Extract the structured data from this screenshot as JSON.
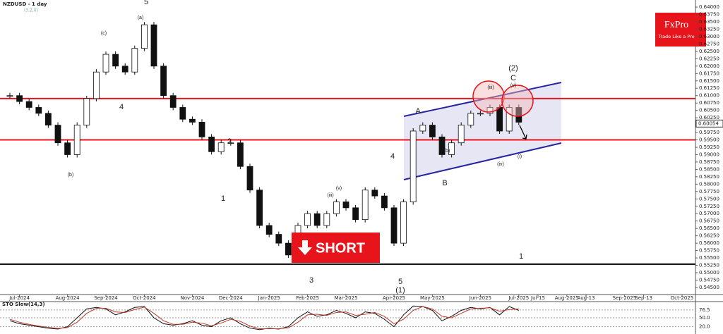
{
  "chart_data": {
    "type": "candlestick",
    "title": "NZDUSD - 1 day",
    "subtitle": "(3,2,0)",
    "brand": {
      "name": "FxPro",
      "tagline": "Trade Like a Pro"
    },
    "signal": "SHORT",
    "categories": [
      null,
      "Jul-2024",
      null,
      null,
      null,
      null,
      "Aug-2024",
      null,
      null,
      null,
      "Sep-2024",
      null,
      null,
      null,
      "Oct-2024",
      null,
      null,
      null,
      null,
      "Nov-2024",
      null,
      null,
      null,
      "Dec-2024",
      null,
      null,
      null,
      "Jan-2025",
      null,
      null,
      null,
      "Feb-2025",
      null,
      null,
      null,
      "Mar-2025",
      null,
      null,
      null,
      null,
      "Apr-2025",
      null,
      null,
      null,
      "May-2025",
      null,
      null,
      null,
      null,
      "Jun-2025",
      null,
      null,
      null,
      "Jul-2025",
      null,
      "Jul-15",
      null,
      null,
      "Aug-2025",
      null,
      "Aug-13",
      null,
      null,
      null,
      "Sep-2025",
      null,
      "Sep-13",
      null,
      null,
      null,
      "Oct-2025",
      null
    ],
    "values": [
      0.61,
      0.608,
      0.606,
      0.604,
      0.6,
      0.594,
      0.59,
      0.6,
      0.609,
      0.618,
      0.624,
      0.62,
      0.618,
      0.626,
      0.634,
      0.62,
      0.61,
      0.606,
      0.602,
      0.601,
      0.596,
      0.591,
      0.594,
      0.594,
      0.586,
      0.578,
      0.566,
      0.563,
      0.56,
      0.556,
      0.566,
      0.57,
      0.566,
      0.57,
      0.574,
      0.572,
      0.568,
      0.578,
      0.576,
      0.572,
      0.56,
      0.574,
      0.598,
      0.6,
      0.596,
      0.59,
      0.594,
      0.6,
      0.604,
      0.604,
      0.606,
      0.598,
      0.606,
      0.601,
      null,
      null,
      null,
      null,
      null,
      null,
      null,
      null,
      null,
      null,
      null,
      null,
      null,
      null,
      null,
      null,
      null,
      null
    ],
    "last_price": 0.60054,
    "ylim": [
      0.5426,
      0.6424
    ],
    "yticks": [
      {
        "value": 0.545,
        "label": "0.54500"
      },
      {
        "value": 0.5475,
        "label": "0.54750"
      },
      {
        "value": 0.55,
        "label": "0.55000"
      },
      {
        "value": 0.5525,
        "label": "0.55250"
      },
      {
        "value": 0.555,
        "label": "0.55500"
      },
      {
        "value": 0.5575,
        "label": "0.55750"
      },
      {
        "value": 0.56,
        "label": "0.56000"
      },
      {
        "value": 0.5625,
        "label": "0.56250"
      },
      {
        "value": 0.565,
        "label": "0.56500"
      },
      {
        "value": 0.5675,
        "label": "0.56750"
      },
      {
        "value": 0.57,
        "label": "0.57000"
      },
      {
        "value": 0.5725,
        "label": "0.57250"
      },
      {
        "value": 0.575,
        "label": "0.57500"
      },
      {
        "value": 0.5775,
        "label": "0.57750"
      },
      {
        "value": 0.58,
        "label": "0.58000"
      },
      {
        "value": 0.5825,
        "label": "0.58250"
      },
      {
        "value": 0.585,
        "label": "0.58500"
      },
      {
        "value": 0.5875,
        "label": "0.58750"
      },
      {
        "value": 0.59,
        "label": "0.59000"
      },
      {
        "value": 0.5925,
        "label": "0.59250"
      },
      {
        "value": 0.595,
        "label": "0.59500"
      },
      {
        "value": 0.5975,
        "label": "0.59750"
      },
      {
        "value": 0.6,
        "label": "0.60000"
      },
      {
        "value": 0.6025,
        "label": "0.60250"
      },
      {
        "value": 0.605,
        "label": "0.60500"
      },
      {
        "value": 0.6075,
        "label": "0.60750"
      },
      {
        "value": 0.61,
        "label": "0.61000"
      },
      {
        "value": 0.6125,
        "label": "0.61250"
      },
      {
        "value": 0.615,
        "label": "0.61500"
      },
      {
        "value": 0.6175,
        "label": "0.61750"
      },
      {
        "value": 0.62,
        "label": "0.62000"
      },
      {
        "value": 0.6225,
        "label": "0.62250"
      },
      {
        "value": 0.625,
        "label": "0.62500"
      },
      {
        "value": 0.6275,
        "label": "0.62750"
      },
      {
        "value": 0.63,
        "label": "0.63000"
      },
      {
        "value": 0.6325,
        "label": "0.63250"
      },
      {
        "value": 0.635,
        "label": "0.63500"
      },
      {
        "value": 0.6375,
        "label": "0.63750"
      },
      {
        "value": 0.64,
        "label": "0.64000"
      }
    ],
    "levels": [
      {
        "value": 0.609,
        "color": "#e8141c"
      },
      {
        "value": 0.595,
        "color": "#e8141c"
      },
      {
        "value": 0.5529,
        "color": "#000000"
      }
    ],
    "annotations": [
      "5",
      "4",
      "1",
      "2",
      "3",
      "4",
      "5",
      "(1)",
      "A",
      "B",
      "C",
      "(2)",
      "1",
      "(b)",
      "(c)",
      "(a)",
      "(iii)",
      "(v)",
      "(b)",
      "(iii)",
      "(iv)",
      "(v)",
      "(i)"
    ],
    "stochastic": {
      "title": "STO Slow(14,3)",
      "ylim": [
        0,
        100
      ],
      "yticks": [
        76.5,
        {
          "value": 50,
          "label": "50.0"
        },
        {
          "value": 20,
          "label": "20.0"
        }
      ],
      "k": [
        40,
        30,
        25,
        20,
        15,
        12,
        20,
        50,
        80,
        85,
        80,
        60,
        70,
        85,
        88,
        50,
        30,
        25,
        30,
        40,
        25,
        20,
        40,
        50,
        30,
        15,
        10,
        15,
        12,
        20,
        50,
        70,
        55,
        60,
        75,
        65,
        50,
        70,
        65,
        45,
        20,
        60,
        90,
        88,
        75,
        40,
        55,
        75,
        85,
        80,
        85,
        60,
        88,
        75,
        null,
        null,
        null,
        null,
        null,
        null,
        null,
        null,
        null,
        null,
        null,
        null,
        null,
        null,
        null,
        null,
        null,
        null
      ],
      "d": [
        45,
        35,
        28,
        22,
        18,
        14,
        17,
        35,
        65,
        82,
        82,
        70,
        68,
        78,
        86,
        65,
        40,
        28,
        28,
        35,
        32,
        23,
        32,
        45,
        38,
        22,
        13,
        13,
        13,
        16,
        35,
        60,
        62,
        58,
        68,
        70,
        58,
        62,
        68,
        55,
        30,
        45,
        75,
        88,
        80,
        55,
        50,
        65,
        80,
        82,
        84,
        72,
        78,
        80,
        null,
        null,
        null,
        null,
        null,
        null,
        null,
        null,
        null,
        null,
        null,
        null,
        null,
        null,
        null,
        null,
        null,
        null
      ]
    }
  }
}
